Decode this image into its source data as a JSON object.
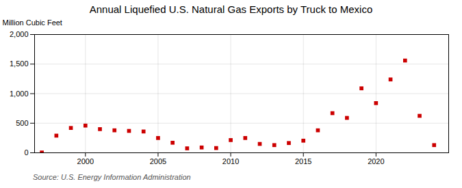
{
  "chart_data": {
    "type": "scatter",
    "title": "Annual Liquefied U.S. Natural Gas Exports by Truck to Mexico",
    "ylabel": "Million Cubic Feet",
    "annotations": [
      "Source: U.S. Energy Information Administration"
    ],
    "x": [
      1997,
      1998,
      1999,
      2000,
      2001,
      2002,
      2003,
      2004,
      2005,
      2006,
      2007,
      2008,
      2009,
      2010,
      2011,
      2012,
      2013,
      2014,
      2015,
      2016,
      2017,
      2018,
      2019,
      2020,
      2021,
      2022,
      2023,
      2024
    ],
    "values": [
      5,
      290,
      420,
      460,
      400,
      380,
      370,
      360,
      250,
      170,
      75,
      90,
      80,
      215,
      250,
      150,
      130,
      165,
      205,
      380,
      670,
      590,
      1090,
      840,
      1240,
      1560,
      625,
      130
    ],
    "color": "#cc0000",
    "marker": "square",
    "xlim": [
      1996.5,
      2025
    ],
    "xticks": [
      2000,
      2005,
      2010,
      2015,
      2020
    ],
    "ylim": [
      0,
      2000
    ],
    "yticks": [
      0,
      500,
      {
        "value": 1000,
        "label": "1,000"
      },
      {
        "value": 1500,
        "label": "1,500"
      },
      {
        "value": 2000,
        "label": "2,000"
      }
    ],
    "grid": true
  }
}
